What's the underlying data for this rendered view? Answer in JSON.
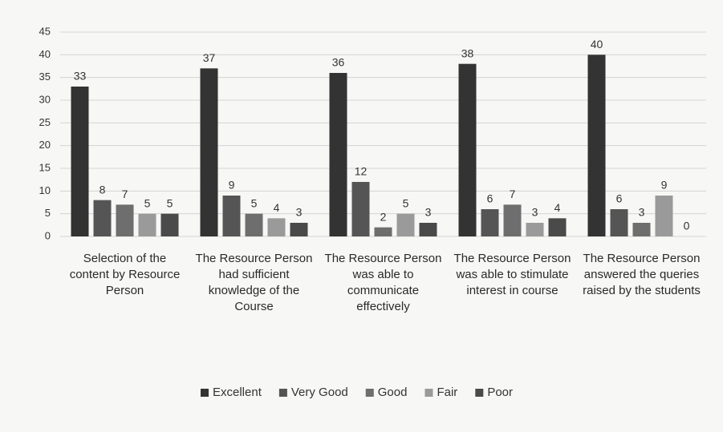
{
  "chart_data": {
    "type": "bar",
    "categories": [
      "Selection of the content by Resource Person",
      "The Resource Person had sufficient knowledge of the Course",
      "The Resource Person was able to communicate effectively",
      "The Resource Person was able to stimulate interest in course",
      "The Resource Person answered the queries raised by the students"
    ],
    "series": [
      {
        "name": "Excellent",
        "color": "#333333",
        "values": [
          33,
          37,
          36,
          38,
          40
        ]
      },
      {
        "name": "Very Good",
        "color": "#555555",
        "values": [
          8,
          9,
          12,
          6,
          6
        ]
      },
      {
        "name": "Good",
        "color": "#6e6e6e",
        "values": [
          7,
          5,
          2,
          7,
          3
        ]
      },
      {
        "name": "Fair",
        "color": "#9a9a9a",
        "values": [
          5,
          4,
          5,
          3,
          9
        ]
      },
      {
        "name": "Poor",
        "color": "#4a4a4a",
        "values": [
          5,
          3,
          3,
          4,
          0
        ]
      }
    ],
    "ylim": [
      0,
      45
    ],
    "yticks": [
      0,
      5,
      10,
      15,
      20,
      25,
      30,
      35,
      40,
      45
    ],
    "grid": true,
    "legend": "bottom"
  }
}
